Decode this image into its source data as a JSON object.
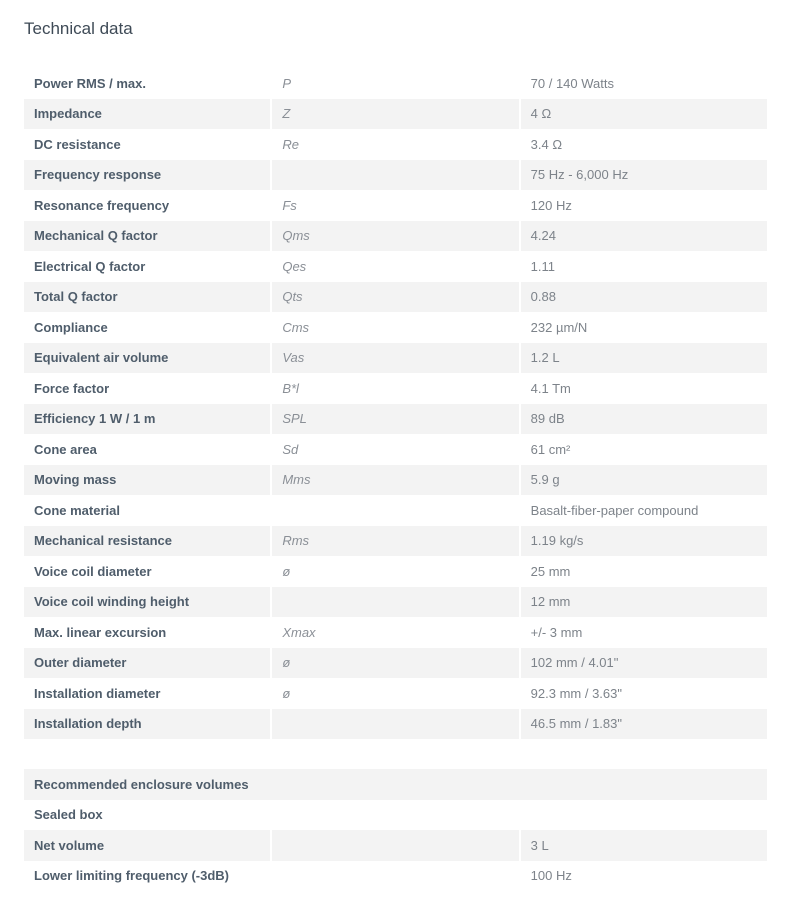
{
  "title": "Technical data",
  "specs": [
    {
      "label": "Power RMS / max.",
      "symbol": "P",
      "value": "70 / 140 Watts"
    },
    {
      "label": "Impedance",
      "symbol": "Z",
      "value": "4 Ω"
    },
    {
      "label": "DC resistance",
      "symbol": "Re",
      "value": "3.4 Ω"
    },
    {
      "label": "Frequency response",
      "symbol": "",
      "value": "75 Hz - 6,000 Hz"
    },
    {
      "label": "Resonance frequency",
      "symbol": "Fs",
      "value": "120 Hz"
    },
    {
      "label": "Mechanical Q factor",
      "symbol": "Qms",
      "value": "4.24"
    },
    {
      "label": "Electrical Q factor",
      "symbol": "Qes",
      "value": "1.11"
    },
    {
      "label": "Total Q factor",
      "symbol": "Qts",
      "value": "0.88"
    },
    {
      "label": "Compliance",
      "symbol": "Cms",
      "value": "232 µm/N"
    },
    {
      "label": "Equivalent air volume",
      "symbol": "Vas",
      "value": "1.2 L"
    },
    {
      "label": "Force factor",
      "symbol": "B*l",
      "value": "4.1 Tm"
    },
    {
      "label": "Efficiency 1 W / 1 m",
      "symbol": "SPL",
      "value": "89 dB"
    },
    {
      "label": "Cone area",
      "symbol": "Sd",
      "value": "61 cm²"
    },
    {
      "label": "Moving mass",
      "symbol": "Mms",
      "value": "5.9 g"
    },
    {
      "label": "Cone material",
      "symbol": "",
      "value": "Basalt-fiber-paper compound"
    },
    {
      "label": "Mechanical resistance",
      "symbol": "Rms",
      "value": "1.19 kg/s"
    },
    {
      "label": "Voice coil diameter",
      "symbol": "ø",
      "value": "25 mm"
    },
    {
      "label": "Voice coil winding height",
      "symbol": "",
      "value": "12 mm"
    },
    {
      "label": "Max. linear excursion",
      "symbol": "Xmax",
      "value": "+/- 3 mm"
    },
    {
      "label": "Outer diameter",
      "symbol": "ø",
      "value": "102 mm / 4.01\""
    },
    {
      "label": "Installation diameter",
      "symbol": "ø",
      "value": "92.3 mm / 3.63\""
    },
    {
      "label": "Installation depth",
      "symbol": "",
      "value": "46.5 mm / 1.83\""
    }
  ],
  "enclosure": {
    "heading": "Recommended enclosure volumes",
    "subheading": "Sealed box",
    "rows": [
      {
        "label": "Net volume",
        "symbol": "",
        "value": "3 L"
      },
      {
        "label": "Lower limiting frequency (-3dB)",
        "symbol": "",
        "value": "100 Hz"
      }
    ]
  }
}
